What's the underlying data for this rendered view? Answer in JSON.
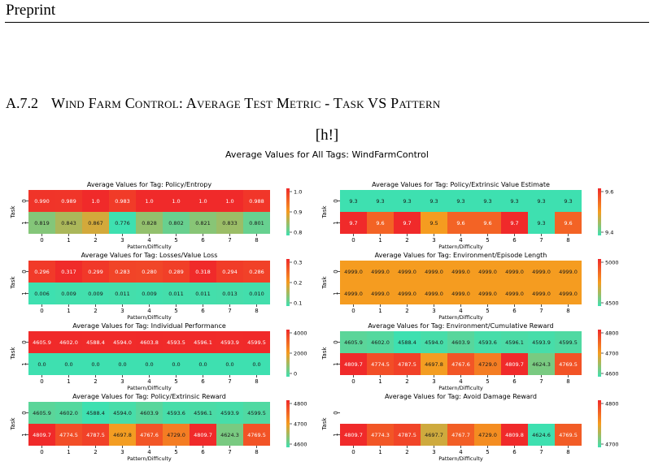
{
  "page": {
    "header": "Preprint",
    "section_number": "A.7.2",
    "section_title": "Wind Farm Control: Average Test Metric - Task VS Pattern",
    "placement_text": "[h!]",
    "figure_title": "Average Values for All Tags: WindFarmControl"
  },
  "chart_data": [
    {
      "type": "heatmap",
      "title": "Average Values for Tag: Policy/Entropy",
      "xlabel": "Pattern/Difficulty",
      "ylabel": "Task",
      "x": [
        "0",
        "1",
        "2",
        "3",
        "4",
        "5",
        "6",
        "7",
        "8"
      ],
      "y": [
        "0",
        "1"
      ],
      "values": [
        [
          "0.990",
          "0.989",
          "1.0",
          "0.983",
          "1.0",
          "1.0",
          "1.0",
          "1.0",
          "0.988"
        ],
        [
          "0.819",
          "0.843",
          "0.867",
          "0.776",
          "0.828",
          "0.802",
          "0.821",
          "0.833",
          "0.801"
        ]
      ],
      "vmin": 0.776,
      "vmax": 1.0,
      "colorbar_ticks": [
        "1.0",
        "0.9",
        "0.8"
      ]
    },
    {
      "type": "heatmap",
      "title": "Average Values for Tag: Policy/Extrinsic Value Estimate",
      "xlabel": "Pattern/Difficulty",
      "ylabel": "Task",
      "x": [
        "0",
        "1",
        "2",
        "3",
        "4",
        "5",
        "6",
        "7",
        "8"
      ],
      "y": [
        "0",
        "1"
      ],
      "values": [
        [
          "9.3",
          "9.3",
          "9.3",
          "9.3",
          "9.3",
          "9.3",
          "9.3",
          "9.3",
          "9.3"
        ],
        [
          "9.7",
          "9.6",
          "9.7",
          "9.5",
          "9.6",
          "9.6",
          "9.7",
          "9.3",
          "9.6"
        ]
      ],
      "vmin": 9.3,
      "vmax": 9.7,
      "colorbar_ticks": [
        "9.6",
        "9.4"
      ]
    },
    {
      "type": "heatmap",
      "title": "Average Values for Tag: Losses/Value Loss",
      "xlabel": "Pattern/Difficulty",
      "ylabel": "Task",
      "x": [
        "0",
        "1",
        "2",
        "3",
        "4",
        "5",
        "6",
        "7",
        "8"
      ],
      "y": [
        "0",
        "1"
      ],
      "values": [
        [
          "0.296",
          "0.317",
          "0.299",
          "0.283",
          "0.280",
          "0.289",
          "0.318",
          "0.294",
          "0.286"
        ],
        [
          "0.006",
          "0.009",
          "0.009",
          "0.011",
          "0.009",
          "0.011",
          "0.011",
          "0.013",
          "0.010"
        ]
      ],
      "vmin": 0.006,
      "vmax": 0.318,
      "colorbar_ticks": [
        "0.3",
        "0.2",
        "0.1"
      ]
    },
    {
      "type": "heatmap",
      "title": "Average Values for Tag: Environment/Episode Length",
      "xlabel": "Pattern/Difficulty",
      "ylabel": "Task",
      "x": [
        "0",
        "1",
        "2",
        "3",
        "4",
        "5",
        "6",
        "7",
        "8"
      ],
      "y": [
        "0",
        "1"
      ],
      "values": [
        [
          "4999.0",
          "4999.0",
          "4999.0",
          "4999.0",
          "4999.0",
          "4999.0",
          "4999.0",
          "4999.0",
          "4999.0"
        ],
        [
          "4999.0",
          "4999.0",
          "4999.0",
          "4999.0",
          "4999.0",
          "4999.0",
          "4999.0",
          "4999.0",
          "4999.0"
        ]
      ],
      "vmin": 4500,
      "vmax": 5500,
      "colorbar_ticks": [
        "5000",
        "4500"
      ]
    },
    {
      "type": "heatmap",
      "title": "Average Values for Tag: Individual Performance",
      "xlabel": "Pattern/Difficulty",
      "ylabel": "Task",
      "x": [
        "0",
        "1",
        "2",
        "3",
        "4",
        "5",
        "6",
        "7",
        "8"
      ],
      "y": [
        "0",
        "1"
      ],
      "values": [
        [
          "4605.9",
          "4602.0",
          "4588.4",
          "4594.0",
          "4603.8",
          "4593.5",
          "4596.1",
          "4593.9",
          "4599.5"
        ],
        [
          "0.0",
          "0.0",
          "0.0",
          "0.0",
          "0.0",
          "0.0",
          "0.0",
          "0.0",
          "0.0"
        ]
      ],
      "vmin": 0,
      "vmax": 4605.9,
      "colorbar_ticks": [
        "4000",
        "2000",
        "0"
      ]
    },
    {
      "type": "heatmap",
      "title": "Average Values for Tag: Environment/Cumulative Reward",
      "xlabel": "Pattern/Difficulty",
      "ylabel": "Task",
      "x": [
        "0",
        "1",
        "2",
        "3",
        "4",
        "5",
        "6",
        "7",
        "8"
      ],
      "y": [
        "0",
        "1"
      ],
      "values": [
        [
          "4605.9",
          "4602.0",
          "4588.4",
          "4594.0",
          "4603.9",
          "4593.6",
          "4596.1",
          "4593.9",
          "4599.5"
        ],
        [
          "4809.7",
          "4774.5",
          "4787.5",
          "4697.8",
          "4767.6",
          "4729.0",
          "4809.7",
          "4624.3",
          "4769.5"
        ]
      ],
      "vmin": 4588.4,
      "vmax": 4809.7,
      "colorbar_ticks": [
        "4800",
        "4700",
        "4600"
      ]
    },
    {
      "type": "heatmap",
      "title": "Average Values for Tag: Policy/Extrinsic Reward",
      "xlabel": "Pattern/Difficulty",
      "ylabel": "Task",
      "x": [
        "0",
        "1",
        "2",
        "3",
        "4",
        "5",
        "6",
        "7",
        "8"
      ],
      "y": [
        "0",
        "1"
      ],
      "values": [
        [
          "4605.9",
          "4602.0",
          "4588.4",
          "4594.0",
          "4603.9",
          "4593.6",
          "4596.1",
          "4593.9",
          "4599.5"
        ],
        [
          "4809.7",
          "4774.5",
          "4787.5",
          "4697.8",
          "4767.6",
          "4729.0",
          "4809.7",
          "4624.3",
          "4769.5"
        ]
      ],
      "vmin": 4588.4,
      "vmax": 4809.7,
      "colorbar_ticks": [
        "4800",
        "4700",
        "4600"
      ]
    },
    {
      "type": "heatmap",
      "title": "Average Values for Tag: Avoid Damage Reward",
      "xlabel": "Pattern/Difficulty",
      "ylabel": "Task",
      "x": [
        "0",
        "1",
        "2",
        "3",
        "4",
        "5",
        "6",
        "7",
        "8"
      ],
      "y": [
        "0",
        "1"
      ],
      "values": [
        [
          null,
          null,
          null,
          null,
          null,
          null,
          null,
          null,
          null
        ],
        [
          "4809.7",
          "4774.3",
          "4787.5",
          "4697.7",
          "4767.7",
          "4729.0",
          "4809.8",
          "4624.6",
          "4769.5"
        ]
      ],
      "vmin": 4624.6,
      "vmax": 4809.8,
      "colorbar_ticks": [
        "4800",
        "4700"
      ]
    }
  ]
}
